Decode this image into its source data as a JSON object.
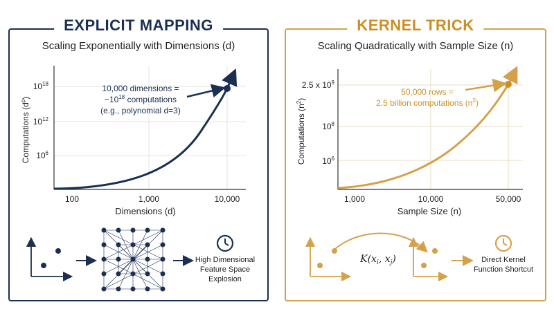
{
  "left": {
    "title": "EXPLICIT MAPPING",
    "subtitle": "Scaling Exponentially with Dimensions (d)",
    "x_axis_label": "Dimensions (d)",
    "x_ticks": [
      "100",
      "1,000",
      "10,000"
    ],
    "y_axis_label": "Computations (d",
    "y_axis_label_sup": "p",
    "y_ticks": [
      {
        "base": "10",
        "sup": "6"
      },
      {
        "base": "10",
        "sup": "12"
      },
      {
        "base": "10",
        "sup": "18"
      }
    ],
    "annotation": {
      "line1": "10,000 dimensions =",
      "line2_prefix": "~10",
      "line2_sup": "18",
      "line2_suffix": " computations",
      "line3": "(e.g., polynomial d=3)"
    },
    "diagram_caption": [
      "High Dimensional",
      "Feature Space",
      "Explosion"
    ],
    "color": "#1a2f52"
  },
  "right": {
    "title": "KERNEL TRICK",
    "subtitle": "Scaling Quadratically with Sample Size (n)",
    "x_axis_label": "Sample Size (n)",
    "x_ticks": [
      "1,000",
      "10,000",
      "50,000"
    ],
    "y_axis_label": "Computations (n",
    "y_axis_label_sup": "2",
    "y_ticks": [
      {
        "base": "10",
        "sup": "6"
      },
      {
        "base": "10",
        "sup": "8"
      },
      {
        "base": "2.5 x 10",
        "sup": "9"
      }
    ],
    "annotation": {
      "line1": "50,000 rows =",
      "line2_prefix": "2.5 billion computations (n",
      "line2_sup": "2",
      "line2_suffix": ")"
    },
    "kernel_label": "K(x",
    "kernel_sub_i": "i",
    "kernel_mid": ", x",
    "kernel_sub_j": "j",
    "kernel_end": ")",
    "diagram_caption": [
      "Direct Kernel",
      "Function Shortcut"
    ],
    "color": "#d4a14a",
    "text_color": "#cc8f25"
  }
}
